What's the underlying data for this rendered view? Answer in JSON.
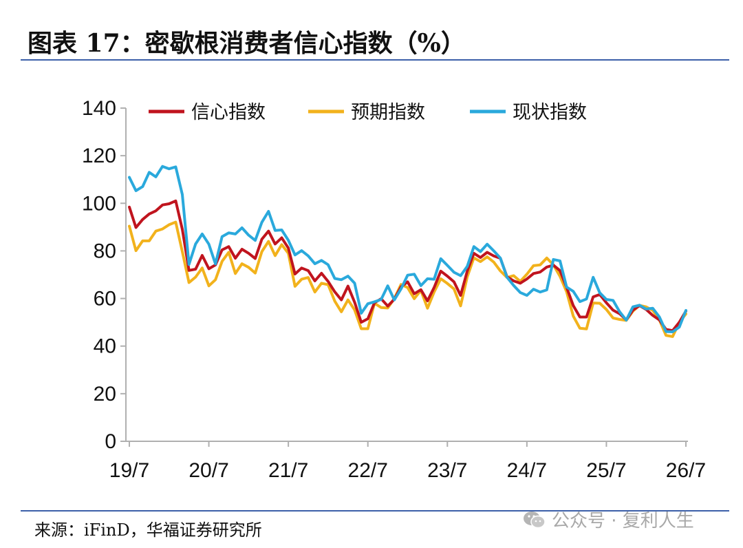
{
  "title": "图表 17：密歇根消费者信心指数（%）",
  "source": "来源：iFinD，华福证券研究所",
  "watermark": "公众号 · 复利人生",
  "chart_data": {
    "type": "line",
    "title": "",
    "xlabel": "",
    "ylabel": "",
    "ylim": [
      0,
      140
    ],
    "yticks": [
      "0",
      "20",
      "40",
      "60",
      "80",
      "100",
      "120",
      "140"
    ],
    "xticks": [
      "19/7",
      "20/7",
      "21/7",
      "22/7",
      "23/7",
      "24/7",
      "25/7",
      "26/7"
    ],
    "grid": false,
    "legend": "top",
    "x_start": "2019-07",
    "series": [
      {
        "name": "信心指数",
        "color": "#c0141e",
        "values": [
          98.4,
          89.8,
          93.2,
          95.5,
          96.8,
          99.3,
          99.8,
          101.0,
          89.1,
          71.8,
          72.3,
          78.1,
          72.5,
          74.1,
          80.4,
          81.8,
          76.9,
          80.7,
          79.0,
          76.8,
          84.9,
          88.3,
          82.9,
          85.5,
          81.2,
          70.3,
          72.8,
          71.7,
          67.4,
          70.6,
          67.2,
          62.8,
          59.4,
          65.2,
          58.4,
          50.0,
          51.5,
          58.2,
          59.9,
          56.8,
          59.7,
          64.9,
          67.0,
          62.0,
          63.7,
          59.0,
          64.6,
          71.5,
          69.4,
          67.0,
          61.3,
          71.5,
          79.0,
          77.2,
          79.4,
          77.9,
          76.9,
          69.1,
          67.4,
          66.4,
          68.2,
          70.5,
          71.1,
          73.2,
          74.0,
          71.7,
          64.7,
          57.0,
          52.2,
          52.2,
          60.7,
          61.7,
          58.2,
          55.1,
          53.6,
          51.0,
          55.1,
          57.0,
          55.4,
          52.9,
          51.0,
          47.0,
          46.5,
          50.0,
          54.7
        ]
      },
      {
        "name": "预期指数",
        "color": "#f2b21c",
        "values": [
          90.4,
          80.1,
          84.2,
          84.2,
          88.3,
          89.2,
          91.0,
          92.1,
          79.7,
          66.7,
          69.0,
          72.8,
          65.3,
          67.9,
          75.6,
          79.4,
          70.5,
          74.6,
          73.1,
          70.7,
          79.7,
          84.0,
          78.0,
          82.6,
          79.0,
          65.1,
          68.1,
          68.8,
          62.7,
          66.4,
          65.8,
          58.9,
          54.4,
          59.4,
          55.2,
          47.3,
          47.3,
          58.0,
          56.2,
          56.0,
          60.0,
          65.9,
          64.6,
          59.9,
          63.4,
          55.9,
          62.7,
          68.3,
          66.3,
          64.0,
          56.9,
          69.1,
          77.1,
          75.5,
          77.5,
          75.3,
          71.6,
          68.8,
          69.6,
          67.2,
          70.2,
          73.8,
          74.1,
          77.0,
          74.1,
          69.3,
          62.8,
          52.6,
          47.5,
          47.2,
          58.1,
          58.0,
          55.4,
          51.8,
          51.2,
          50.8,
          54.7,
          57.1,
          56.5,
          55.0,
          51.0,
          44.5,
          44.0,
          50.0,
          53.5
        ]
      },
      {
        "name": "现状指数",
        "color": "#2aa9dc",
        "values": [
          110.9,
          105.3,
          107.0,
          113.0,
          111.1,
          115.5,
          114.5,
          115.3,
          103.7,
          74.3,
          82.9,
          87.1,
          82.8,
          74.5,
          86.0,
          87.6,
          87.1,
          89.7,
          86.6,
          84.4,
          92.0,
          96.6,
          88.6,
          88.8,
          84.5,
          78.3,
          80.1,
          77.9,
          74.6,
          76.0,
          74.2,
          68.4,
          67.9,
          69.4,
          66.4,
          53.8,
          57.8,
          58.6,
          59.6,
          65.3,
          59.4,
          64.0,
          69.8,
          70.2,
          65.4,
          68.3,
          68.1,
          76.7,
          73.9,
          71.0,
          69.6,
          73.5,
          81.8,
          79.7,
          82.8,
          80.0,
          77.0,
          68.9,
          65.5,
          62.5,
          61.3,
          63.9,
          62.7,
          63.6,
          76.4,
          75.8,
          64.8,
          63.0,
          58.7,
          59.8,
          68.9,
          62.4,
          59.6,
          59.2,
          54.4,
          50.9,
          56.5,
          57.2,
          55.6,
          55.9,
          52.2,
          46.1,
          46.0,
          48.0,
          55.0
        ]
      }
    ]
  }
}
